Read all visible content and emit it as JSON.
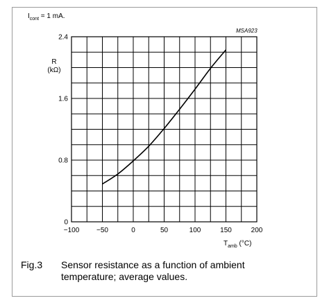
{
  "chart_data": {
    "type": "line",
    "condition_prefix": "I",
    "condition_sub": "cont",
    "condition_suffix": " = 1 mA.",
    "code": "MSA923",
    "ylabel_line1": "R",
    "ylabel_line2": "(kΩ)",
    "xlabel_main": "T",
    "xlabel_sub": "amb",
    "xlabel_unit": " (°C)",
    "xlim": [
      -100,
      200
    ],
    "ylim": [
      0,
      2.4
    ],
    "x_ticks": [
      -100,
      -50,
      0,
      50,
      100,
      150,
      200
    ],
    "x_tick_labels": [
      "−100",
      "−50",
      "0",
      "50",
      "100",
      "150",
      "200"
    ],
    "y_ticks": [
      0,
      0.8,
      1.6,
      2.4
    ],
    "y_tick_labels": [
      "0",
      "0.8",
      "1.6",
      "2.4"
    ],
    "x_grid_step": 25,
    "y_grid_step": 0.2,
    "grid": true,
    "series": [
      {
        "x": [
          -50,
          -25,
          0,
          25,
          50,
          75,
          100,
          125,
          150
        ],
        "y": [
          0.49,
          0.62,
          0.79,
          0.98,
          1.21,
          1.46,
          1.72,
          1.99,
          2.23
        ]
      }
    ]
  },
  "caption": {
    "figure": "Fig.3",
    "text": "Sensor resistance as a function of ambient temperature; average values."
  }
}
